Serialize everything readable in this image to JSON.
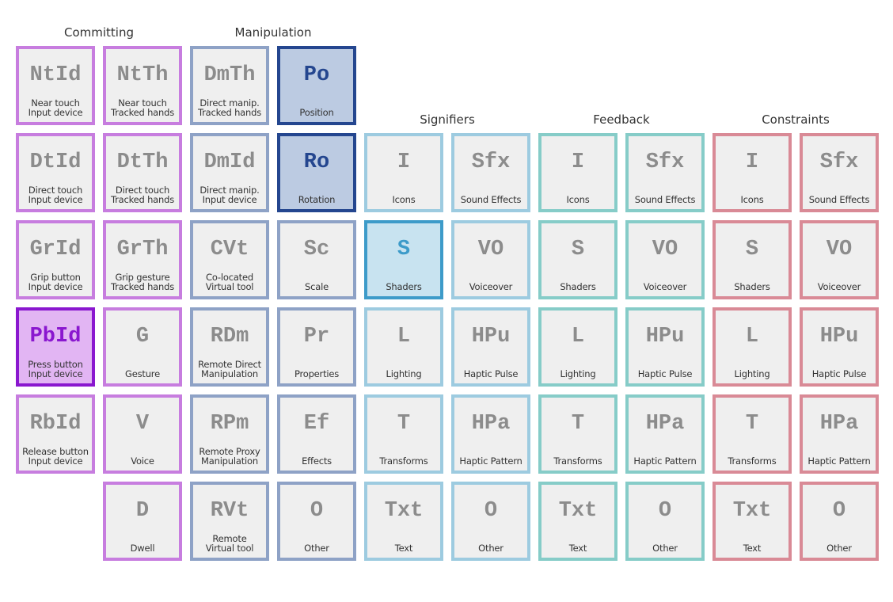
{
  "groups": [
    {
      "key": "commit",
      "title": "Committing"
    },
    {
      "key": "manip",
      "title": "Manipulation"
    },
    {
      "key": "sig",
      "title": "Signifiers"
    },
    {
      "key": "feed",
      "title": "Feedback"
    },
    {
      "key": "cons",
      "title": "Constraints"
    }
  ],
  "tiles": [
    {
      "group": "commit",
      "symbol": "NtId",
      "caption": [
        "Near touch",
        "Input device"
      ],
      "active": false
    },
    {
      "group": "commit",
      "symbol": "NtTh",
      "caption": [
        "Near touch",
        "Tracked hands"
      ],
      "active": false
    },
    {
      "group": "manip",
      "symbol": "DmTh",
      "caption": [
        "Direct manip.",
        "Tracked hands"
      ],
      "active": false
    },
    {
      "group": "manip",
      "symbol": "Po",
      "caption": [
        "Position"
      ],
      "active": true
    },
    {
      "group": "commit",
      "symbol": "DtId",
      "caption": [
        "Direct touch",
        "Input device"
      ],
      "active": false
    },
    {
      "group": "commit",
      "symbol": "DtTh",
      "caption": [
        "Direct touch",
        "Tracked hands"
      ],
      "active": false
    },
    {
      "group": "manip",
      "symbol": "DmId",
      "caption": [
        "Direct manip.",
        "Input device"
      ],
      "active": false
    },
    {
      "group": "manip",
      "symbol": "Ro",
      "caption": [
        "Rotation"
      ],
      "active": true
    },
    {
      "group": "sig",
      "symbol": "I",
      "caption": [
        "Icons"
      ],
      "active": false
    },
    {
      "group": "sig",
      "symbol": "Sfx",
      "caption": [
        "Sound Effects"
      ],
      "active": false
    },
    {
      "group": "feed",
      "symbol": "I",
      "caption": [
        "Icons"
      ],
      "active": false
    },
    {
      "group": "feed",
      "symbol": "Sfx",
      "caption": [
        "Sound Effects"
      ],
      "active": false
    },
    {
      "group": "cons",
      "symbol": "I",
      "caption": [
        "Icons"
      ],
      "active": false
    },
    {
      "group": "cons",
      "symbol": "Sfx",
      "caption": [
        "Sound Effects"
      ],
      "active": false
    },
    {
      "group": "commit",
      "symbol": "GrId",
      "caption": [
        "Grip button",
        "Input device"
      ],
      "active": false
    },
    {
      "group": "commit",
      "symbol": "GrTh",
      "caption": [
        "Grip gesture",
        "Tracked hands"
      ],
      "active": false
    },
    {
      "group": "manip",
      "symbol": "CVt",
      "caption": [
        "Co-located",
        "Virtual tool"
      ],
      "active": false
    },
    {
      "group": "manip",
      "symbol": "Sc",
      "caption": [
        "Scale"
      ],
      "active": false
    },
    {
      "group": "sig",
      "symbol": "S",
      "caption": [
        "Shaders"
      ],
      "active": true
    },
    {
      "group": "sig",
      "symbol": "VO",
      "caption": [
        "Voiceover"
      ],
      "active": false
    },
    {
      "group": "feed",
      "symbol": "S",
      "caption": [
        "Shaders"
      ],
      "active": false
    },
    {
      "group": "feed",
      "symbol": "VO",
      "caption": [
        "Voiceover"
      ],
      "active": false
    },
    {
      "group": "cons",
      "symbol": "S",
      "caption": [
        "Shaders"
      ],
      "active": false
    },
    {
      "group": "cons",
      "symbol": "VO",
      "caption": [
        "Voiceover"
      ],
      "active": false
    },
    {
      "group": "commit",
      "symbol": "PbId",
      "caption": [
        "Press button",
        "Input device"
      ],
      "active": true
    },
    {
      "group": "commit",
      "symbol": "G",
      "caption": [
        "Gesture"
      ],
      "active": false
    },
    {
      "group": "manip",
      "symbol": "RDm",
      "caption": [
        "Remote Direct",
        "Manipulation"
      ],
      "active": false
    },
    {
      "group": "manip",
      "symbol": "Pr",
      "caption": [
        "Properties"
      ],
      "active": false
    },
    {
      "group": "sig",
      "symbol": "L",
      "caption": [
        "Lighting"
      ],
      "active": false
    },
    {
      "group": "sig",
      "symbol": "HPu",
      "caption": [
        "Haptic Pulse"
      ],
      "active": false
    },
    {
      "group": "feed",
      "symbol": "L",
      "caption": [
        "Lighting"
      ],
      "active": false
    },
    {
      "group": "feed",
      "symbol": "HPu",
      "caption": [
        "Haptic Pulse"
      ],
      "active": false
    },
    {
      "group": "cons",
      "symbol": "L",
      "caption": [
        "Lighting"
      ],
      "active": false
    },
    {
      "group": "cons",
      "symbol": "HPu",
      "caption": [
        "Haptic Pulse"
      ],
      "active": false
    },
    {
      "group": "commit",
      "symbol": "RbId",
      "caption": [
        "Release button",
        "Input device"
      ],
      "active": false
    },
    {
      "group": "commit",
      "symbol": "V",
      "caption": [
        "Voice"
      ],
      "active": false
    },
    {
      "group": "manip",
      "symbol": "RPm",
      "caption": [
        "Remote Proxy",
        "Manipulation"
      ],
      "active": false
    },
    {
      "group": "manip",
      "symbol": "Ef",
      "caption": [
        "Effects"
      ],
      "active": false
    },
    {
      "group": "sig",
      "symbol": "T",
      "caption": [
        "Transforms"
      ],
      "active": false
    },
    {
      "group": "sig",
      "symbol": "HPa",
      "caption": [
        "Haptic Pattern"
      ],
      "active": false
    },
    {
      "group": "feed",
      "symbol": "T",
      "caption": [
        "Transforms"
      ],
      "active": false
    },
    {
      "group": "feed",
      "symbol": "HPa",
      "caption": [
        "Haptic Pattern"
      ],
      "active": false
    },
    {
      "group": "cons",
      "symbol": "T",
      "caption": [
        "Transforms"
      ],
      "active": false
    },
    {
      "group": "cons",
      "symbol": "HPa",
      "caption": [
        "Haptic Pattern"
      ],
      "active": false
    },
    {
      "group": "commit",
      "symbol": "D",
      "caption": [
        "Dwell"
      ],
      "active": false
    },
    {
      "group": "manip",
      "symbol": "RVt",
      "caption": [
        "Remote",
        "Virtual tool"
      ],
      "active": false
    },
    {
      "group": "manip",
      "symbol": "O",
      "caption": [
        "Other"
      ],
      "active": false
    },
    {
      "group": "sig",
      "symbol": "Txt",
      "caption": [
        "Text"
      ],
      "active": false
    },
    {
      "group": "sig",
      "symbol": "O",
      "caption": [
        "Other"
      ],
      "active": false
    },
    {
      "group": "feed",
      "symbol": "Txt",
      "caption": [
        "Text"
      ],
      "active": false
    },
    {
      "group": "feed",
      "symbol": "O",
      "caption": [
        "Other"
      ],
      "active": false
    },
    {
      "group": "cons",
      "symbol": "Txt",
      "caption": [
        "Text"
      ],
      "active": false
    },
    {
      "group": "cons",
      "symbol": "O",
      "caption": [
        "Other"
      ],
      "active": false
    }
  ]
}
